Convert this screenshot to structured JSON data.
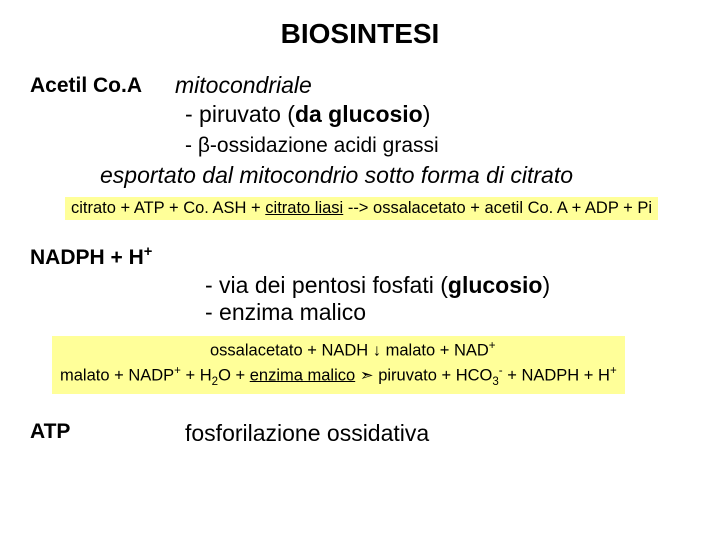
{
  "title": "BIOSINTESI",
  "section1": {
    "label": "Acetil Co.A",
    "mito": "mitocondriale",
    "piruvato_prefix": "- piruvato (",
    "piruvato_bold": "da glucosio",
    "piruvato_suffix": ")",
    "beta": "- β-ossidazione acidi grassi",
    "esportato": "esportato dal mitocondrio sotto forma di citrato",
    "eq_pre": "citrato  + ATP + Co. ASH + ",
    "eq_ul": "citrato liasi",
    "eq_post": " --> ossalacetato + acetil Co. A + ADP + Pi"
  },
  "section2": {
    "label_pre": "NADPH + H",
    "label_sup": "+",
    "pentosi_prefix": "- via dei pentosi fosfati (",
    "pentosi_bold": "glucosio",
    "pentosi_suffix": ")",
    "malico": "- enzima malico",
    "eq_l1_a": "ossalacetato  + NADH  ",
    "eq_l1_arrow": "↓",
    "eq_l1_b": "  malato + NAD",
    "eq_l1_sup": "+",
    "eq_l2_a": "malato  +  NADP",
    "eq_l2_sup1": "+",
    "eq_l2_b": "  +  H",
    "eq_l2_sub": "2",
    "eq_l2_c": "O  +  ",
    "eq_l2_ul": "enzima malico",
    "eq_l2_d": "   ",
    "eq_l2_arrow": "➣",
    "eq_l2_e": " piruvato  +  HCO",
    "eq_l2_sub2": "3",
    "eq_l2_sup2": "-",
    "eq_l2_f": "  +  NADPH + H",
    "eq_l2_sup3": "+"
  },
  "section3": {
    "label": "ATP",
    "text": "fosforilazione ossidativa"
  },
  "colors": {
    "highlight": "#ffff99",
    "background": "#ffffff",
    "text": "#000000"
  }
}
